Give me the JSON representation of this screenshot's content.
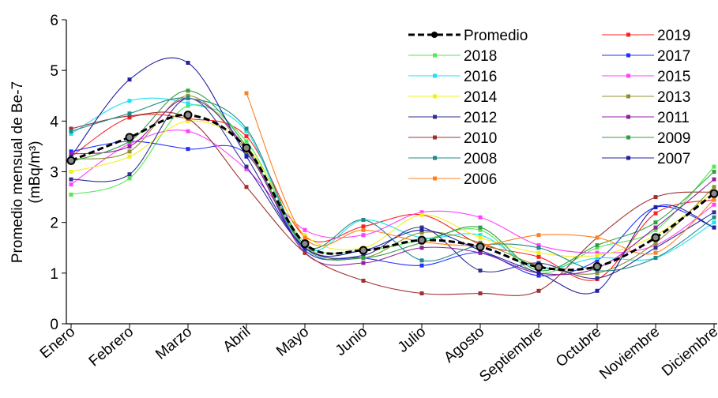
{
  "chart_data": {
    "type": "line",
    "y_label": [
      "Promedio mensual de Be-7",
      "(mBq/m³)"
    ],
    "categories": [
      "Enero",
      "Febrero",
      "Marzo",
      "Abril",
      "Mayo",
      "Junio",
      "Julio",
      "Agosto",
      "Septiembre",
      "Octubre",
      "Noviembre",
      "Diciembre"
    ],
    "ylim": [
      0,
      6
    ],
    "yticks": [
      0,
      1,
      2,
      3,
      4,
      5,
      6
    ],
    "series": [
      {
        "name": "Promedio",
        "color": "#000000",
        "values": [
          3.22,
          3.68,
          4.12,
          3.47,
          1.58,
          1.45,
          1.65,
          1.52,
          1.12,
          1.13,
          1.7,
          2.57
        ]
      },
      {
        "name": "2019",
        "color": "#ff2020",
        "values": [
          3.3,
          4.07,
          4.05,
          3.7,
          1.72,
          1.92,
          2.15,
          1.57,
          1.32,
          0.88,
          2.18,
          2.45
        ]
      },
      {
        "name": "2018",
        "color": "#55e855",
        "values": [
          2.55,
          2.87,
          4.3,
          3.6,
          1.6,
          1.45,
          1.65,
          1.85,
          1.0,
          1.5,
          1.85,
          3.1
        ]
      },
      {
        "name": "2017",
        "color": "#2030ff",
        "values": [
          3.4,
          3.6,
          3.45,
          3.35,
          1.45,
          1.3,
          1.15,
          1.4,
          0.95,
          1.25,
          2.3,
          1.9
        ]
      },
      {
        "name": "2016",
        "color": "#20e0f0",
        "values": [
          3.75,
          4.4,
          4.35,
          3.8,
          1.5,
          2.05,
          1.7,
          1.75,
          1.1,
          1.3,
          1.3,
          2.0
        ]
      },
      {
        "name": "2015",
        "color": "#ff40ff",
        "values": [
          2.75,
          3.55,
          3.8,
          3.05,
          1.85,
          1.75,
          2.2,
          2.1,
          1.55,
          1.4,
          1.55,
          2.35
        ]
      },
      {
        "name": "2014",
        "color": "#f0f020",
        "values": [
          3.0,
          3.3,
          4.0,
          3.5,
          1.75,
          1.5,
          2.15,
          1.7,
          1.4,
          1.35,
          1.75,
          2.6
        ]
      },
      {
        "name": "2013",
        "color": "#909030",
        "values": [
          3.25,
          3.4,
          4.5,
          3.4,
          1.55,
          1.3,
          1.8,
          1.6,
          1.15,
          1.0,
          1.6,
          2.7
        ]
      },
      {
        "name": "2012",
        "color": "#303090",
        "values": [
          2.85,
          2.95,
          4.45,
          3.1,
          1.5,
          1.35,
          1.9,
          1.05,
          1.2,
          0.9,
          1.5,
          2.2
        ]
      },
      {
        "name": "2011",
        "color": "#9020a0",
        "values": [
          3.35,
          3.5,
          4.45,
          3.45,
          1.4,
          1.2,
          1.5,
          1.4,
          1.0,
          1.1,
          1.9,
          2.85
        ]
      },
      {
        "name": "2010",
        "color": "#a03030",
        "values": [
          3.85,
          4.1,
          4.05,
          2.7,
          1.4,
          0.85,
          0.6,
          0.6,
          0.65,
          1.7,
          2.5,
          2.6
        ]
      },
      {
        "name": "2009",
        "color": "#30a040",
        "values": [
          3.2,
          3.6,
          4.6,
          3.5,
          1.5,
          1.3,
          1.6,
          1.9,
          1.05,
          1.55,
          2.0,
          3.0
        ]
      },
      {
        "name": "2008",
        "color": "#208888",
        "values": [
          3.8,
          4.15,
          4.45,
          3.85,
          1.55,
          2.05,
          1.25,
          1.55,
          1.5,
          1.05,
          1.3,
          2.1
        ]
      },
      {
        "name": "2007",
        "color": "#2020a0",
        "values": [
          3.3,
          4.82,
          5.15,
          3.3,
          1.5,
          1.45,
          1.85,
          1.45,
          1.0,
          0.65,
          2.3,
          1.9
        ]
      },
      {
        "name": "2006",
        "color": "#ff8020",
        "values": [
          null,
          null,
          null,
          4.55,
          1.7,
          1.85,
          1.62,
          1.55,
          1.75,
          1.7,
          1.4,
          2.45
        ]
      }
    ]
  }
}
